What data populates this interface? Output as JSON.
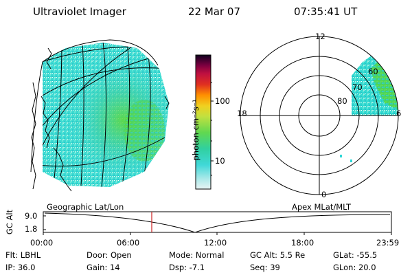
{
  "header": {
    "instrument": "Ultraviolet Imager",
    "date": "22 Mar 07",
    "time": "07:35:41 UT"
  },
  "colorbar": {
    "unit_label": "photon cm⁻²s⁻¹",
    "ticks": [
      "100",
      "10"
    ]
  },
  "polar_plot": {
    "labels": {
      "top": "12",
      "left": "18",
      "right": "6",
      "bottom": "0"
    },
    "lat_rings": [
      "80",
      "70",
      "60"
    ]
  },
  "timeline": {
    "left_label": "Geographic Lat/Lon",
    "right_label": "Apex MLat/MLT",
    "axis_title": "GC Alt",
    "y_ticks": [
      "9.0",
      "1.8"
    ],
    "x_ticks": [
      "00:00",
      "06:00",
      "12:00",
      "18:00",
      "23:59"
    ]
  },
  "info": {
    "row1": {
      "flt": "Flt: LBHL",
      "door": "Door: Open",
      "mode": "Mode: Normal",
      "gc_alt": "GC Alt: 5.5 Re",
      "glat": "GLat: -55.5"
    },
    "row2": {
      "ip": "IP: 36.0",
      "gain": "Gain: 14",
      "dsp": "Dsp:   -7.1",
      "seq": "Seq: 39",
      "glon": "GLon: 20.0"
    }
  },
  "colors": {
    "cyan": "#2fd6d6",
    "green": "#3cd23c",
    "marker": "#cc2020"
  }
}
